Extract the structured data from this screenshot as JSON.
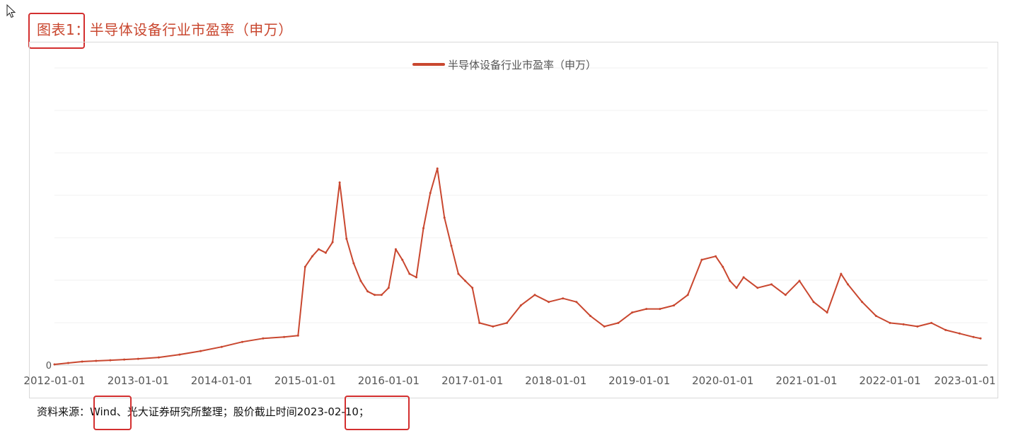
{
  "figure": {
    "label": "图表1",
    "sep": "：",
    "title": "半导体设备行业市盈率（申万）"
  },
  "source": {
    "prefix": "资料来源：",
    "wind": "Wind",
    "middle": "、光大证券研究所整理；股价截止时间",
    "date": "2023-02-10",
    "suffix": "；"
  },
  "colors": {
    "series": "#c9472f",
    "title": "#c9472f",
    "highlight": "#d32f2f",
    "grid": "#f2f2f2",
    "axis_text": "#555555"
  },
  "chart_data": {
    "type": "line",
    "title": "",
    "legend": {
      "position": "top-center",
      "entries": [
        "半导体设备行业市盈率（申万）"
      ]
    },
    "xlabel": "",
    "ylabel": "",
    "x_ticks": [
      "2012-01-01",
      "2013-01-01",
      "2014-01-01",
      "2015-01-01",
      "2016-01-01",
      "2017-01-01",
      "2018-01-01",
      "2019-01-01",
      "2020-01-01",
      "2021-01-01",
      "2022-01-01",
      "2023-01-01"
    ],
    "y_ticks": [
      "0"
    ],
    "ylim": [
      0,
      400
    ],
    "grid": true,
    "series": [
      {
        "name": "半导体设备行业市盈率（申万）",
        "x": [
          "2012-01-01",
          "2012-03-01",
          "2012-05-01",
          "2012-07-01",
          "2012-09-01",
          "2012-11-01",
          "2013-01-01",
          "2013-04-01",
          "2013-07-01",
          "2013-10-01",
          "2014-01-01",
          "2014-04-01",
          "2014-07-01",
          "2014-10-01",
          "2014-12-01",
          "2015-01-01",
          "2015-02-01",
          "2015-03-01",
          "2015-04-01",
          "2015-05-01",
          "2015-06-01",
          "2015-07-01",
          "2015-08-01",
          "2015-09-01",
          "2015-10-01",
          "2015-11-01",
          "2015-12-01",
          "2016-01-01",
          "2016-02-01",
          "2016-03-01",
          "2016-04-01",
          "2016-05-01",
          "2016-06-01",
          "2016-07-01",
          "2016-08-01",
          "2016-09-01",
          "2016-10-01",
          "2016-11-01",
          "2016-12-01",
          "2017-01-01",
          "2017-02-01",
          "2017-04-01",
          "2017-06-01",
          "2017-08-01",
          "2017-10-01",
          "2017-12-01",
          "2018-02-01",
          "2018-04-01",
          "2018-06-01",
          "2018-08-01",
          "2018-10-01",
          "2018-12-01",
          "2019-02-01",
          "2019-04-01",
          "2019-06-01",
          "2019-08-01",
          "2019-10-01",
          "2019-12-01",
          "2020-01-01",
          "2020-02-01",
          "2020-03-01",
          "2020-04-01",
          "2020-06-01",
          "2020-08-01",
          "2020-10-01",
          "2020-12-01",
          "2021-02-01",
          "2021-04-01",
          "2021-06-01",
          "2021-07-01",
          "2021-09-01",
          "2021-11-01",
          "2022-01-01",
          "2022-03-01",
          "2022-05-01",
          "2022-07-01",
          "2022-09-01",
          "2022-11-01",
          "2023-01-01",
          "2023-02-01"
        ],
        "values": [
          1,
          3,
          5,
          6,
          7,
          8,
          9,
          11,
          15,
          20,
          26,
          33,
          38,
          40,
          42,
          140,
          155,
          165,
          160,
          175,
          260,
          180,
          145,
          120,
          105,
          100,
          100,
          110,
          165,
          150,
          130,
          125,
          195,
          245,
          280,
          210,
          170,
          130,
          120,
          110,
          60,
          55,
          60,
          85,
          100,
          90,
          95,
          90,
          70,
          55,
          60,
          75,
          80,
          80,
          85,
          100,
          150,
          155,
          140,
          120,
          110,
          125,
          110,
          115,
          100,
          120,
          90,
          75,
          130,
          115,
          90,
          70,
          60,
          58,
          55,
          60,
          50,
          45,
          40,
          38
        ]
      }
    ]
  }
}
